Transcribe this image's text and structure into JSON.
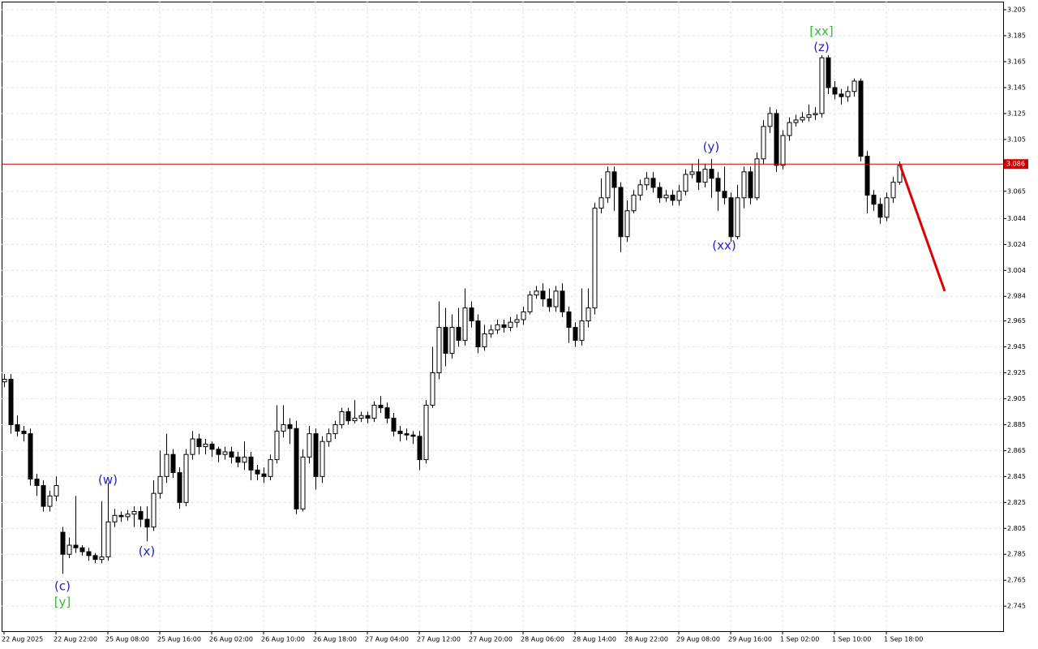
{
  "chart_data": {
    "type": "candlestick",
    "categories": [
      "22 Aug 2025",
      null,
      null,
      null,
      null,
      null,
      null,
      null,
      "22 Aug 22:00",
      null,
      null,
      null,
      null,
      null,
      null,
      null,
      "25 Aug 08:00",
      null,
      null,
      null,
      null,
      null,
      null,
      null,
      "25 Aug 16:00",
      null,
      null,
      null,
      null,
      null,
      null,
      null,
      "26 Aug 02:00",
      null,
      null,
      null,
      null,
      null,
      null,
      null,
      "26 Aug 10:00",
      null,
      null,
      null,
      null,
      null,
      null,
      null,
      "26 Aug 18:00",
      null,
      null,
      null,
      null,
      null,
      null,
      null,
      "27 Aug 04:00",
      null,
      null,
      null,
      null,
      null,
      null,
      null,
      "27 Aug 12:00",
      null,
      null,
      null,
      null,
      null,
      null,
      null,
      "27 Aug 20:00",
      null,
      null,
      null,
      null,
      null,
      null,
      null,
      "28 Aug 06:00",
      null,
      null,
      null,
      null,
      null,
      null,
      null,
      "28 Aug 14:00",
      null,
      null,
      null,
      null,
      null,
      null,
      null,
      "28 Aug 22:00",
      null,
      null,
      null,
      null,
      null,
      null,
      null,
      "29 Aug 08:00",
      null,
      null,
      null,
      null,
      null,
      null,
      null,
      "29 Aug 16:00",
      null,
      null,
      null,
      null,
      null,
      null,
      null,
      "1 Sep 02:00",
      null,
      null,
      null,
      null,
      null,
      null,
      null,
      "1 Sep 10:00",
      null,
      null,
      null,
      null,
      null,
      null,
      null,
      "1 Sep 18:00",
      null,
      null
    ],
    "open": [
      2.918,
      2.92,
      2.885,
      2.88,
      2.878,
      2.843,
      2.838,
      2.822,
      2.83,
      2.802,
      2.785,
      2.792,
      2.79,
      2.787,
      2.784,
      2.781,
      2.783,
      2.81,
      2.815,
      2.814,
      2.816,
      2.818,
      2.812,
      2.806,
      2.832,
      2.845,
      2.862,
      2.848,
      2.825,
      2.862,
      2.874,
      2.868,
      2.87,
      2.866,
      2.862,
      2.864,
      2.86,
      2.856,
      2.86,
      2.85,
      2.847,
      2.845,
      2.858,
      2.88,
      2.885,
      2.882,
      2.82,
      2.86,
      2.878,
      2.845,
      2.872,
      2.878,
      2.885,
      2.895,
      2.888,
      2.89,
      2.892,
      2.89,
      2.9,
      2.898,
      2.89,
      2.88,
      2.878,
      2.877,
      2.876,
      2.858,
      2.9,
      2.925,
      2.96,
      2.94,
      2.96,
      2.95,
      2.975,
      2.965,
      2.945,
      2.955,
      2.958,
      2.962,
      2.96,
      2.964,
      2.966,
      2.972,
      2.985,
      2.988,
      2.982,
      2.976,
      2.988,
      2.972,
      2.96,
      2.95,
      2.965,
      2.975,
      3.052,
      3.06,
      3.08,
      3.068,
      3.03,
      3.05,
      3.062,
      3.07,
      3.075,
      3.068,
      3.06,
      3.062,
      3.058,
      3.065,
      3.078,
      3.08,
      3.072,
      3.082,
      3.075,
      3.065,
      3.06,
      3.03,
      3.06,
      3.08,
      3.06,
      3.09,
      3.115,
      3.125,
      3.085,
      3.108,
      3.118,
      3.12,
      3.122,
      3.124,
      3.125,
      3.168,
      3.145,
      3.14,
      3.138,
      3.142,
      3.15,
      3.092,
      3.062,
      3.055,
      3.045,
      3.06,
      3.072
    ],
    "high": [
      2.924,
      2.924,
      2.892,
      2.884,
      2.882,
      2.847,
      2.842,
      2.834,
      2.845,
      2.806,
      2.798,
      2.83,
      2.792,
      2.79,
      2.786,
      2.826,
      2.84,
      2.82,
      2.818,
      2.819,
      2.822,
      2.822,
      2.822,
      2.842,
      2.865,
      2.878,
      2.866,
      2.852,
      2.866,
      2.88,
      2.878,
      2.874,
      2.872,
      2.868,
      2.868,
      2.868,
      2.864,
      2.872,
      2.864,
      2.854,
      2.852,
      2.862,
      2.9,
      2.9,
      2.89,
      2.888,
      2.866,
      2.884,
      2.882,
      2.876,
      2.882,
      2.888,
      2.898,
      2.898,
      2.904,
      2.895,
      2.895,
      2.903,
      2.907,
      2.902,
      2.894,
      2.884,
      2.882,
      2.88,
      2.88,
      2.904,
      2.945,
      2.98,
      2.975,
      2.97,
      2.975,
      2.99,
      2.98,
      2.97,
      2.962,
      2.962,
      2.966,
      2.966,
      2.968,
      2.97,
      2.976,
      2.988,
      2.992,
      2.994,
      2.99,
      2.992,
      2.994,
      2.976,
      2.964,
      2.99,
      2.99,
      3.056,
      3.075,
      3.084,
      3.084,
      3.072,
      3.058,
      3.066,
      3.074,
      3.08,
      3.08,
      3.072,
      3.066,
      3.066,
      3.07,
      3.082,
      3.086,
      3.09,
      3.086,
      3.09,
      3.08,
      3.084,
      3.064,
      3.07,
      3.084,
      3.084,
      3.095,
      3.12,
      3.13,
      3.128,
      3.112,
      3.122,
      3.124,
      3.126,
      3.132,
      3.13,
      3.17,
      3.17,
      3.15,
      3.144,
      3.146,
      3.152,
      3.152,
      3.096,
      3.066,
      3.06,
      3.064,
      3.076,
      3.088
    ],
    "low": [
      2.914,
      2.878,
      2.876,
      2.872,
      2.838,
      2.83,
      2.818,
      2.818,
      2.826,
      2.77,
      2.782,
      2.786,
      2.784,
      2.78,
      2.778,
      2.778,
      2.78,
      2.806,
      2.81,
      2.811,
      2.806,
      2.806,
      2.795,
      2.803,
      2.828,
      2.84,
      2.844,
      2.82,
      2.822,
      2.858,
      2.862,
      2.862,
      2.86,
      2.856,
      2.858,
      2.855,
      2.852,
      2.85,
      2.842,
      2.842,
      2.84,
      2.842,
      2.855,
      2.875,
      2.87,
      2.816,
      2.818,
      2.855,
      2.835,
      2.84,
      2.868,
      2.874,
      2.882,
      2.885,
      2.886,
      2.887,
      2.886,
      2.887,
      2.894,
      2.886,
      2.876,
      2.872,
      2.873,
      2.87,
      2.85,
      2.855,
      2.898,
      2.92,
      2.93,
      2.936,
      2.945,
      2.946,
      2.96,
      2.94,
      2.942,
      2.952,
      2.955,
      2.956,
      2.957,
      2.96,
      2.962,
      2.97,
      2.982,
      2.976,
      2.972,
      2.972,
      2.968,
      2.948,
      2.945,
      2.946,
      2.96,
      2.97,
      3.048,
      3.056,
      3.05,
      3.018,
      3.026,
      3.048,
      3.058,
      3.066,
      3.064,
      3.056,
      3.057,
      3.054,
      3.054,
      3.062,
      3.075,
      3.066,
      3.068,
      3.06,
      3.05,
      3.055,
      3.026,
      3.028,
      3.052,
      3.055,
      3.058,
      3.086,
      3.11,
      3.08,
      3.082,
      3.104,
      3.115,
      3.118,
      3.119,
      3.12,
      3.122,
      3.14,
      3.136,
      3.132,
      3.134,
      3.138,
      3.088,
      3.048,
      3.05,
      3.04,
      3.042,
      3.056,
      3.07
    ],
    "close": [
      2.92,
      2.885,
      2.88,
      2.878,
      2.843,
      2.838,
      2.822,
      2.83,
      2.838,
      2.785,
      2.792,
      2.79,
      2.787,
      2.784,
      2.781,
      2.783,
      2.81,
      2.815,
      2.814,
      2.816,
      2.818,
      2.812,
      2.806,
      2.832,
      2.845,
      2.862,
      2.848,
      2.825,
      2.862,
      2.874,
      2.868,
      2.87,
      2.866,
      2.862,
      2.864,
      2.86,
      2.856,
      2.86,
      2.85,
      2.847,
      2.845,
      2.858,
      2.88,
      2.885,
      2.882,
      2.82,
      2.86,
      2.878,
      2.845,
      2.872,
      2.878,
      2.885,
      2.895,
      2.888,
      2.89,
      2.892,
      2.89,
      2.9,
      2.898,
      2.89,
      2.88,
      2.878,
      2.877,
      2.876,
      2.858,
      2.9,
      2.925,
      2.96,
      2.94,
      2.96,
      2.95,
      2.975,
      2.965,
      2.945,
      2.955,
      2.958,
      2.962,
      2.96,
      2.964,
      2.966,
      2.972,
      2.985,
      2.988,
      2.982,
      2.976,
      2.988,
      2.972,
      2.96,
      2.95,
      2.965,
      2.975,
      3.052,
      3.06,
      3.08,
      3.068,
      3.03,
      3.05,
      3.062,
      3.07,
      3.075,
      3.068,
      3.06,
      3.062,
      3.058,
      3.065,
      3.078,
      3.08,
      3.072,
      3.082,
      3.075,
      3.065,
      3.06,
      3.03,
      3.06,
      3.08,
      3.06,
      3.09,
      3.115,
      3.125,
      3.085,
      3.108,
      3.118,
      3.12,
      3.122,
      3.124,
      3.125,
      3.168,
      3.145,
      3.14,
      3.138,
      3.142,
      3.15,
      3.092,
      3.062,
      3.055,
      3.045,
      3.06,
      3.072,
      3.085
    ],
    "bull_color": "#ffffff",
    "bear_color": "#000000",
    "wick_color": "#000000",
    "ylim": [
      2.7257,
      3.2113
    ],
    "yticks": [
      3.205,
      3.185,
      3.165,
      3.145,
      3.125,
      3.105,
      3.065,
      3.044,
      3.024,
      3.004,
      2.984,
      2.965,
      2.945,
      2.925,
      2.905,
      2.885,
      2.865,
      2.845,
      2.825,
      2.805,
      2.785,
      2.765,
      2.745
    ],
    "grid": true,
    "price_line": 3.086,
    "price_line_color": "#d00000",
    "forecast": {
      "values": [
        3.086,
        2.988
      ],
      "color": "#e00000"
    },
    "annotations": [
      {
        "text": "(c)",
        "candle": 9,
        "value": 2.76,
        "color": "#2222cc"
      },
      {
        "text": "[y]",
        "candle": 9,
        "value": 2.748,
        "color": "#33bb33"
      },
      {
        "text": "(w)",
        "candle": 16,
        "value": 2.842,
        "color": "#2222cc"
      },
      {
        "text": "(x)",
        "candle": 22,
        "value": 2.787,
        "color": "#2222cc"
      },
      {
        "text": "(y)",
        "candle": 109,
        "value": 3.099,
        "color": "#2222cc"
      },
      {
        "text": "(xx)",
        "candle": 111,
        "value": 3.023,
        "color": "#2222cc"
      },
      {
        "text": "(z)",
        "candle": 126,
        "value": 3.176,
        "color": "#2222cc"
      },
      {
        "text": "[xx]",
        "candle": 126,
        "value": 3.188,
        "color": "#33bb33"
      }
    ]
  }
}
